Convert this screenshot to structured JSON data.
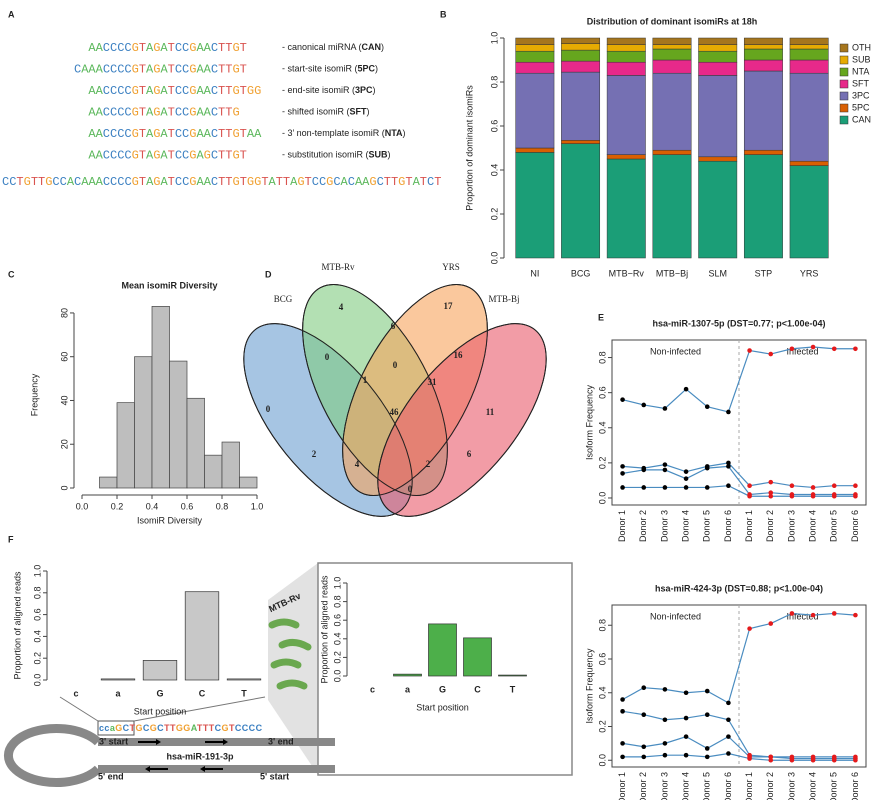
{
  "panel_letters": [
    "A",
    "B",
    "C",
    "D",
    "E",
    "F"
  ],
  "isomirs": {
    "sequences": [
      {
        "seq": "AACCCCGTAGATCCGAACTTGT",
        "label": [
          "- canonical miRNA (",
          "CAN",
          ")"
        ]
      },
      {
        "seq": "CAAACCCCGTAGATCCGAACTTGT",
        "label": [
          "- start-site isomiR (",
          "5PC",
          ")"
        ]
      },
      {
        "seq": "AACCCCGTAGATCCGAACTTGTGG",
        "label": [
          "- end-site isomiR (",
          "3PC",
          ")"
        ]
      },
      {
        "seq": "AACCCCGTAGATCCGAACTTG",
        "label": [
          "- shifted isomiR (",
          "SFT",
          ")"
        ]
      },
      {
        "seq": "AACCCCGTAGATCCGAACTTGTAA",
        "label": [
          "- 3’ non-template isomiR (",
          "NTA",
          ")"
        ]
      },
      {
        "seq": "AACCCCGTAGATCCGAGCTTGT",
        "label": [
          "- substitution isomiR (",
          "SUB",
          ")"
        ]
      }
    ],
    "precursor": "CCTGTTGCCACAAACCCCGTAGATCCGAACTTGTGGTATTAGTCCGCACAAGCTTGTATCT"
  },
  "chart_data": [
    {
      "type": "stacked_bar",
      "title": "Distribution of dominant isomiRs at 18h",
      "y_label": "Proportion of dominant isomiRs",
      "categories": [
        "NI",
        "BCG",
        "MTB−Rv",
        "MTB−Bj",
        "SLM",
        "STP",
        "YRS"
      ],
      "series": [
        {
          "name": "CAN",
          "color": "#1b9e77",
          "values": [
            0.48,
            0.52,
            0.45,
            0.47,
            0.44,
            0.47,
            0.42
          ]
        },
        {
          "name": "5PC",
          "color": "#d95f02",
          "values": [
            0.02,
            0.015,
            0.02,
            0.02,
            0.02,
            0.02,
            0.02
          ]
        },
        {
          "name": "3PC",
          "color": "#7570b3",
          "values": [
            0.34,
            0.31,
            0.36,
            0.35,
            0.37,
            0.36,
            0.4
          ]
        },
        {
          "name": "SFT",
          "color": "#e7298a",
          "values": [
            0.05,
            0.05,
            0.06,
            0.06,
            0.06,
            0.05,
            0.06
          ]
        },
        {
          "name": "NTA",
          "color": "#66a61e",
          "values": [
            0.05,
            0.05,
            0.05,
            0.05,
            0.05,
            0.05,
            0.05
          ]
        },
        {
          "name": "SUB",
          "color": "#e6ab02",
          "values": [
            0.03,
            0.03,
            0.03,
            0.02,
            0.03,
            0.02,
            0.02
          ]
        },
        {
          "name": "OTH",
          "color": "#a6761d",
          "values": [
            0.03,
            0.025,
            0.03,
            0.03,
            0.03,
            0.03,
            0.03
          ]
        }
      ],
      "ylim": [
        0,
        1
      ],
      "yticks": [
        {
          "value": 0,
          "label": "0.0"
        },
        {
          "value": 0.2,
          "label": "0.2"
        },
        {
          "value": 0.4,
          "label": "0.4"
        },
        {
          "value": 0.6,
          "label": "0.6"
        },
        {
          "value": 0.8,
          "label": "0.8"
        },
        {
          "value": 1,
          "label": "1.0"
        }
      ],
      "legend": "right"
    },
    {
      "type": "histogram",
      "title": "Mean isomiR Diversity",
      "x_label": "IsomiR Diversity",
      "y_label": "Frequency",
      "color": "#bebebe",
      "bins": [
        0.1,
        0.2,
        0.3,
        0.4,
        0.5,
        0.6,
        0.7,
        0.8,
        0.9,
        1.0
      ],
      "values": [
        5,
        39,
        60,
        83,
        58,
        41,
        15,
        21,
        5
      ],
      "xlim": [
        0,
        1
      ],
      "xticks": [
        {
          "value": 0,
          "label": "0.0"
        },
        {
          "value": 0.2,
          "label": "0.2"
        },
        {
          "value": 0.4,
          "label": "0.4"
        },
        {
          "value": 0.6,
          "label": "0.6"
        },
        {
          "value": 0.8,
          "label": "0.8"
        },
        {
          "value": 1,
          "label": "1.0"
        }
      ],
      "ylim": [
        0,
        85
      ],
      "yticks": [
        0,
        20,
        40,
        60,
        80
      ]
    },
    {
      "type": "line",
      "title": "hsa-miR-1307-5p (DST=0.77; p<1.00e-04)",
      "y_label": "Isoform Frequency",
      "categories": [
        "Donor 1",
        "Donor 2",
        "Donor 3",
        "Donor 4",
        "Donor 5",
        "Donor 6",
        "Donor 1",
        "Donor 2",
        "Donor 3",
        "Donor 4",
        "Donor 5",
        "Donor 6"
      ],
      "group_labels": [
        "Non-infected",
        "Infected"
      ],
      "group_colors": [
        "#000000",
        "#e41a1c"
      ],
      "color": "#4a8cc0",
      "series": [
        {
          "values": [
            0.56,
            0.53,
            0.51,
            0.62,
            0.52,
            0.49,
            0.84,
            0.82,
            0.85,
            0.86,
            0.85,
            0.85
          ]
        },
        {
          "values": [
            0.18,
            0.17,
            0.19,
            0.15,
            0.18,
            0.2,
            0.07,
            0.09,
            0.07,
            0.06,
            0.07,
            0.07
          ]
        },
        {
          "values": [
            0.14,
            0.16,
            0.16,
            0.11,
            0.17,
            0.18,
            0.02,
            0.03,
            0.02,
            0.02,
            0.02,
            0.02
          ]
        },
        {
          "values": [
            0.06,
            0.06,
            0.06,
            0.06,
            0.06,
            0.07,
            0.01,
            0.01,
            0.01,
            0.01,
            0.01,
            0.01
          ]
        }
      ],
      "ylim": [
        -0.04,
        0.9
      ],
      "yticks": [
        {
          "value": 0,
          "label": "0.0"
        },
        {
          "value": 0.2,
          "label": "0.2"
        },
        {
          "value": 0.4,
          "label": "0.4"
        },
        {
          "value": 0.6,
          "label": "0.6"
        },
        {
          "value": 0.8,
          "label": "0.8"
        }
      ]
    },
    {
      "type": "line",
      "title": "hsa-miR-424-3p (DST=0.88; p<1.00e-04)",
      "y_label": "Isoform Frequency",
      "categories": [
        "Donor 1",
        "Donor 2",
        "Donor 3",
        "Donor 4",
        "Donor 5",
        "Donor 6",
        "Donor 1",
        "Donor 2",
        "Donor 3",
        "Donor 4",
        "Donor 5",
        "Donor 6"
      ],
      "group_labels": [
        "Non-infected",
        "Infected"
      ],
      "group_colors": [
        "#000000",
        "#e41a1c"
      ],
      "color": "#4a8cc0",
      "series": [
        {
          "values": [
            0.36,
            0.43,
            0.42,
            0.4,
            0.41,
            0.34,
            0.78,
            0.81,
            0.87,
            0.86,
            0.87,
            0.86
          ]
        },
        {
          "values": [
            0.29,
            0.27,
            0.24,
            0.25,
            0.27,
            0.24,
            0.03,
            0.02,
            0.02,
            0.02,
            0.02,
            0.02
          ]
        },
        {
          "values": [
            0.1,
            0.08,
            0.1,
            0.14,
            0.07,
            0.14,
            0.02,
            0.02,
            0.01,
            0.01,
            0.01,
            0.01
          ]
        },
        {
          "values": [
            0.02,
            0.02,
            0.03,
            0.03,
            0.02,
            0.04,
            0.01,
            0,
            0,
            0,
            0,
            0
          ]
        }
      ],
      "ylim": [
        -0.04,
        0.92
      ],
      "yticks": [
        {
          "value": 0,
          "label": "0.0"
        },
        {
          "value": 0.2,
          "label": "0.2"
        },
        {
          "value": 0.4,
          "label": "0.4"
        },
        {
          "value": 0.6,
          "label": "0.6"
        },
        {
          "value": 0.8,
          "label": "0.8"
        }
      ]
    },
    {
      "type": "bar",
      "x_label": "Start position",
      "y_label": "Proportion of aligned reads",
      "color": "#c8c8c8",
      "categories": [
        "c",
        "a",
        "G",
        "C",
        "T"
      ],
      "category_colors": [
        "#4a86c5",
        "#7cb342",
        "#f0a030",
        "#4a86c5",
        "#d9534f"
      ],
      "values": [
        0,
        0.01,
        0.18,
        0.81,
        0.01
      ],
      "ylim": [
        0,
        1
      ],
      "yticks": [
        {
          "value": 0,
          "label": "0.0"
        },
        {
          "value": 0.2,
          "label": "0.2"
        },
        {
          "value": 0.4,
          "label": "0.4"
        },
        {
          "value": 0.6,
          "label": "0.6"
        },
        {
          "value": 0.8,
          "label": "0.8"
        },
        {
          "value": 1,
          "label": "1.0"
        }
      ]
    },
    {
      "type": "bar",
      "x_label": "Start position",
      "y_label": "Proportion of aligned reads",
      "color": "#4daf4a",
      "categories": [
        "c",
        "a",
        "G",
        "C",
        "T"
      ],
      "category_colors": [
        "#4a86c5",
        "#7cb342",
        "#f0a030",
        "#4a86c5",
        "#d9534f"
      ],
      "values": [
        0,
        0.02,
        0.56,
        0.41,
        0.01
      ],
      "ylim": [
        0,
        1
      ],
      "yticks": [
        {
          "value": 0,
          "label": "0.0"
        },
        {
          "value": 0.2,
          "label": "0.2"
        },
        {
          "value": 0.4,
          "label": "0.4"
        },
        {
          "value": 0.6,
          "label": "0.6"
        },
        {
          "value": 0.8,
          "label": "0.8"
        },
        {
          "value": 1,
          "label": "1.0"
        }
      ]
    }
  ],
  "venn": {
    "sets": [
      "BCG",
      "MTB-Rv",
      "YRS",
      "MTB-Bj"
    ],
    "regions": [
      0,
      4,
      17,
      11,
      0,
      6,
      16,
      0,
      1,
      31,
      46,
      2,
      4,
      2,
      6,
      0
    ]
  },
  "hairpin": {
    "sequence": "ccaGCTGCGCTTGGATTTCGTCCCC",
    "name": "hsa-miR-191-3p",
    "labels": [
      "3' start",
      "3' end",
      "5' end",
      "5' start"
    ],
    "condition": "MTB-Rv"
  }
}
